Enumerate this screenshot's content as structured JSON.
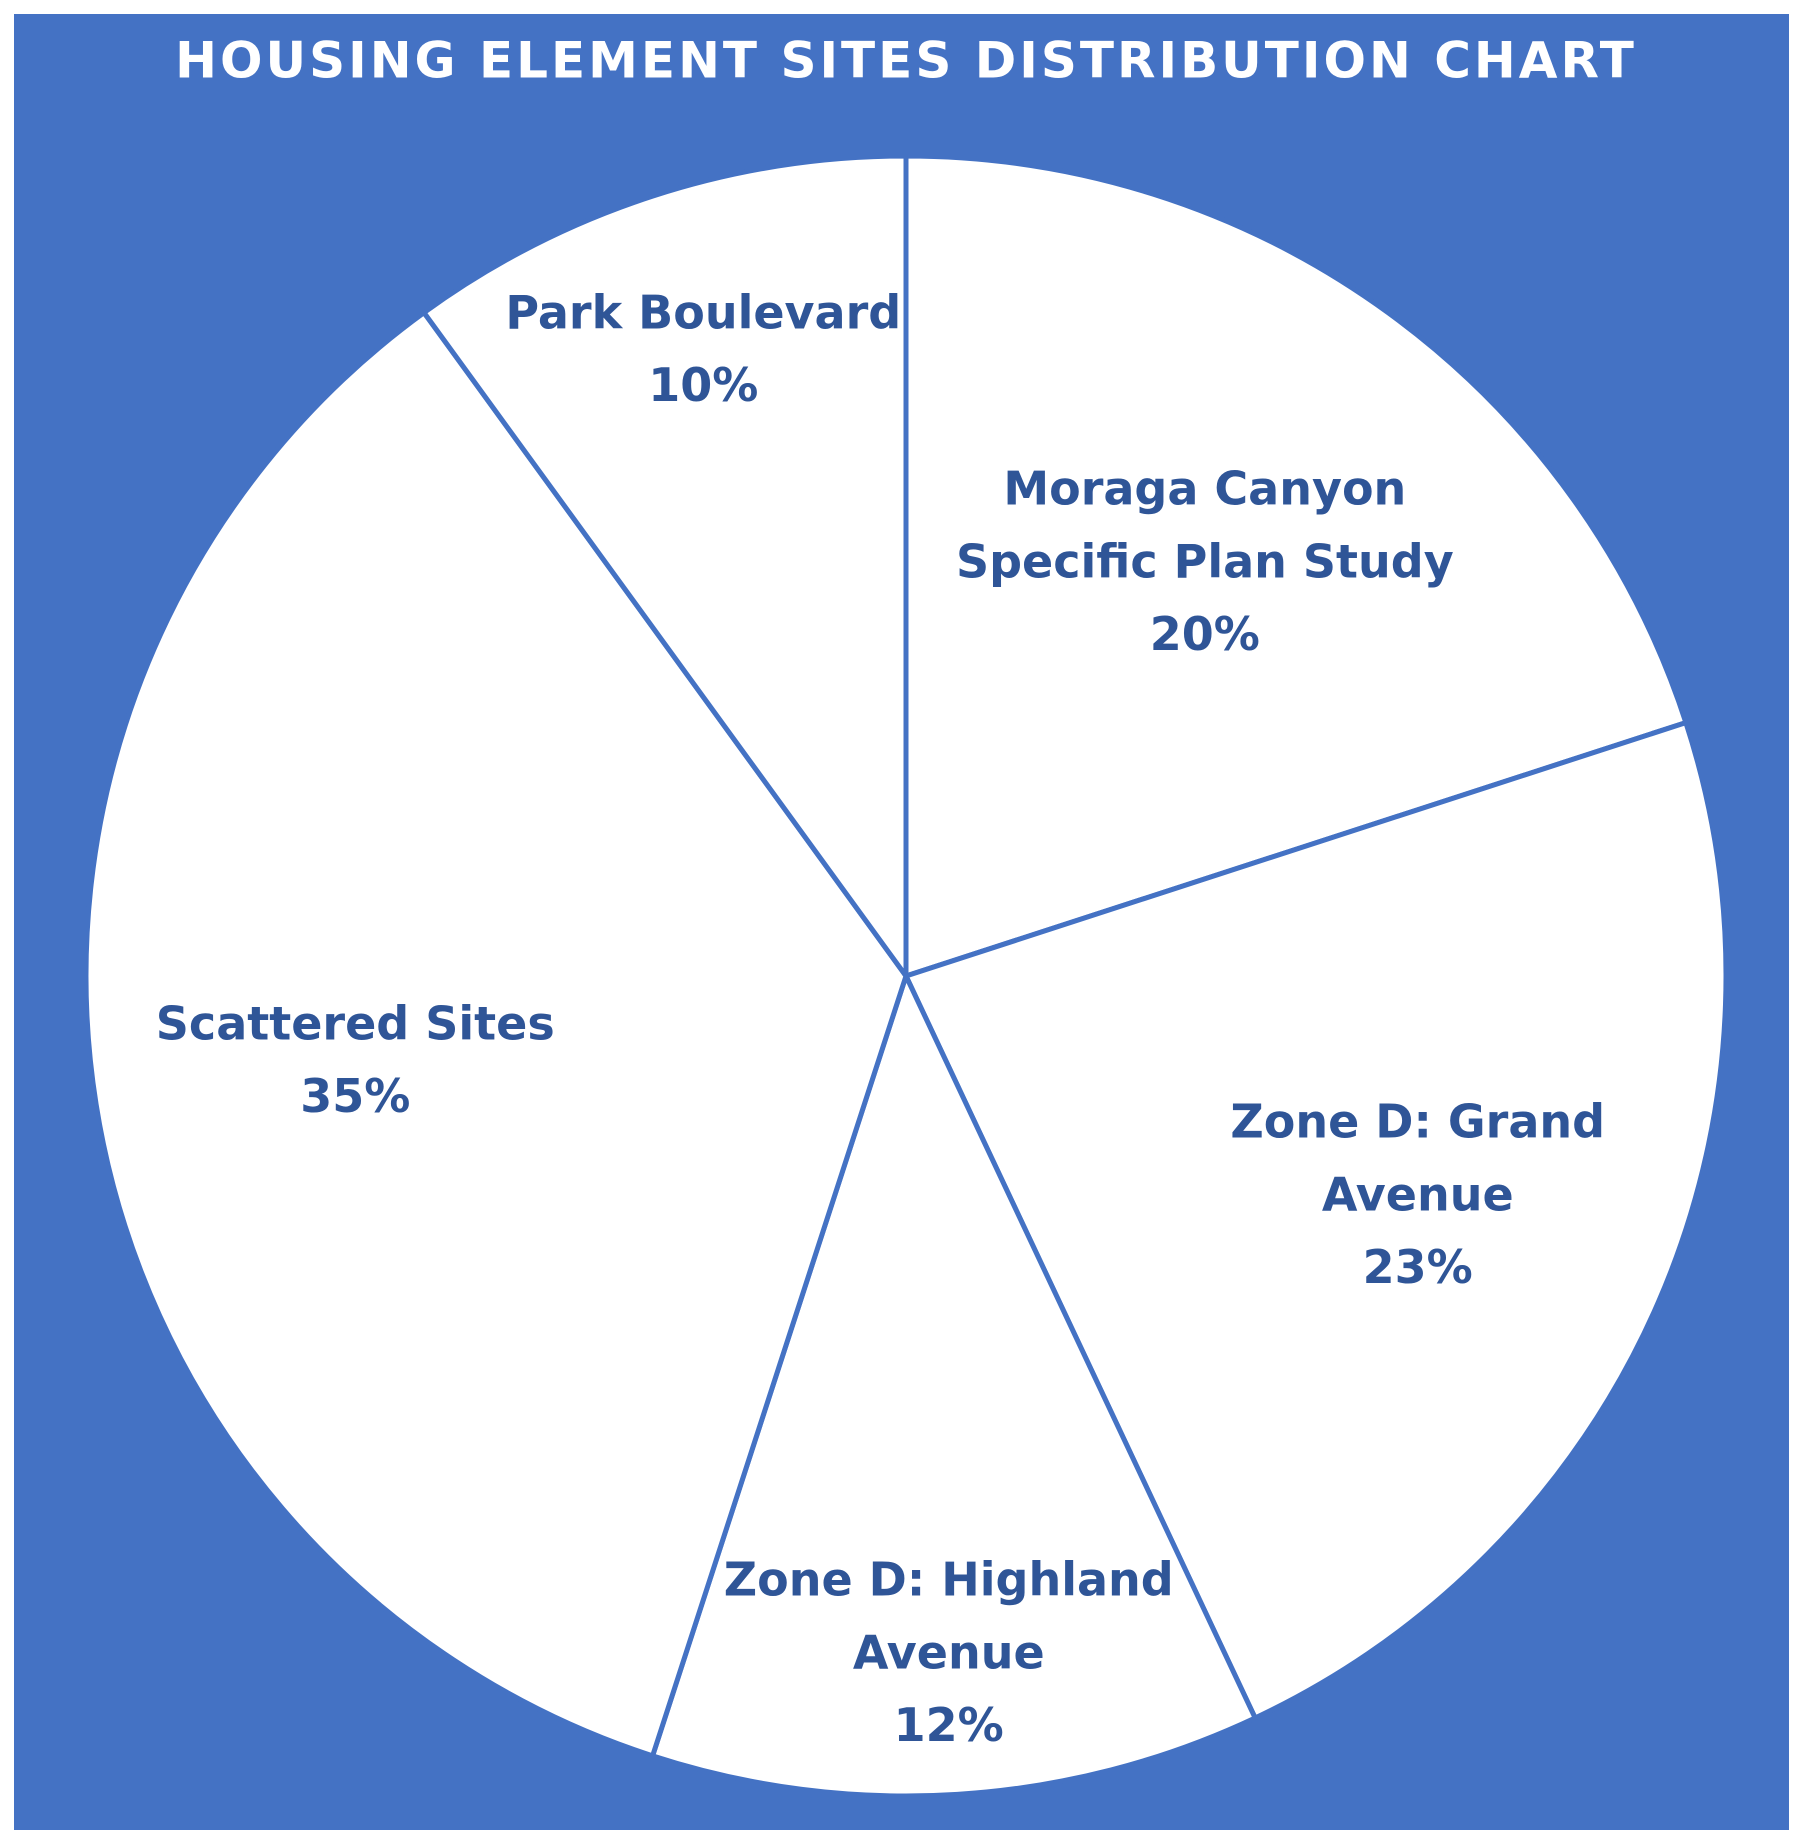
{
  "chart_data": {
    "type": "pie",
    "title": "HOUSING ELEMENT SITES DISTRIBUTION CHART",
    "categories": [
      "Moraga Canyon Specific Plan Study",
      "Zone D: Grand Avenue",
      "Zone D: Highland Avenue",
      "Scattered Sites",
      "Park Boulevard"
    ],
    "values": [
      20,
      23,
      12,
      35,
      10
    ],
    "value_labels": [
      "20%",
      "23%",
      "12%",
      "35%",
      "10%"
    ],
    "colors": [
      "#ffffff",
      "#ffffff",
      "#ffffff",
      "#ffffff",
      "#ffffff"
    ],
    "background": "#4472c4",
    "label_color": "#2f5597"
  }
}
